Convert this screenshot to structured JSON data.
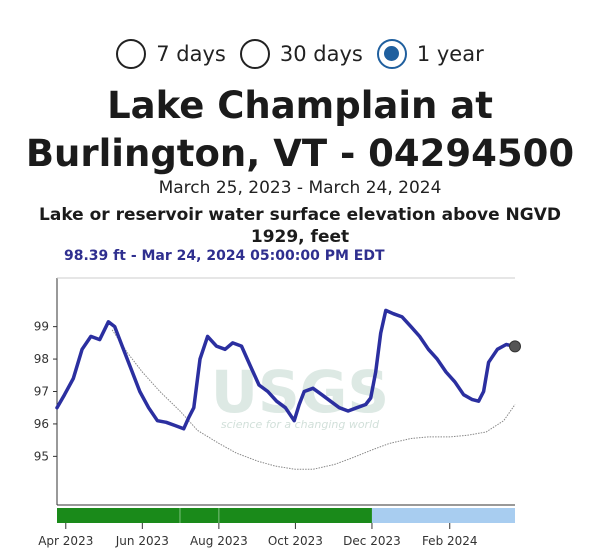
{
  "range_selector": {
    "options": [
      {
        "label": "7 days",
        "selected": false
      },
      {
        "label": "30 days",
        "selected": false
      },
      {
        "label": "1 year",
        "selected": true
      }
    ]
  },
  "header": {
    "title_line1": "Lake Champlain at",
    "title_line2": "Burlington, VT - 04294500",
    "date_range": "March 25, 2023 - March 24, 2024",
    "parameter_line1": "Lake or reservoir water surface elevation above NGVD",
    "parameter_line2": "1929, feet",
    "latest_reading": "98.39 ft - Mar 24, 2024 05:00:00 PM EDT"
  },
  "watermark": {
    "logo_text": "USGS",
    "tagline": "science for a changing world"
  },
  "colors": {
    "series": "#2b2fa0",
    "median": "#888888",
    "approved": "#1a8a1a",
    "provisional": "#a8cdf0"
  },
  "chart_data": {
    "type": "line",
    "x_range": [
      "2023-03-25",
      "2024-03-24"
    ],
    "ylim": [
      93.5,
      100.5
    ],
    "y_ticks": [
      95,
      96,
      97,
      98,
      99
    ],
    "x_ticks": [
      {
        "date": "2023-04-01",
        "label": "Apr 2023"
      },
      {
        "date": "2023-06-01",
        "label": "Jun 2023"
      },
      {
        "date": "2023-08-01",
        "label": "Aug 2023"
      },
      {
        "date": "2023-10-01",
        "label": "Oct 2023"
      },
      {
        "date": "2023-12-01",
        "label": "Dec 2023"
      },
      {
        "date": "2024-02-01",
        "label": "Feb 2024"
      }
    ],
    "grid": false,
    "series": [
      {
        "name": "",
        "points": [
          [
            "2023-03-25",
            96.5
          ],
          [
            "2023-03-31",
            96.9
          ],
          [
            "2023-04-07",
            97.4
          ],
          [
            "2023-04-14",
            98.3
          ],
          [
            "2023-04-21",
            98.7
          ],
          [
            "2023-04-28",
            98.6
          ],
          [
            "2023-05-05",
            99.15
          ],
          [
            "2023-05-10",
            99.0
          ],
          [
            "2023-05-16",
            98.4
          ],
          [
            "2023-05-23",
            97.7
          ],
          [
            "2023-05-30",
            97.0
          ],
          [
            "2023-06-06",
            96.5
          ],
          [
            "2023-06-13",
            96.1
          ],
          [
            "2023-06-20",
            96.05
          ],
          [
            "2023-06-27",
            95.95
          ],
          [
            "2023-07-04",
            95.85
          ],
          [
            "2023-07-08",
            96.2
          ],
          [
            "2023-07-12",
            96.5
          ],
          [
            "2023-07-17",
            98.0
          ],
          [
            "2023-07-23",
            98.7
          ],
          [
            "2023-07-30",
            98.4
          ],
          [
            "2023-08-06",
            98.3
          ],
          [
            "2023-08-12",
            98.5
          ],
          [
            "2023-08-19",
            98.4
          ],
          [
            "2023-08-26",
            97.8
          ],
          [
            "2023-09-02",
            97.2
          ],
          [
            "2023-09-09",
            97.0
          ],
          [
            "2023-09-16",
            96.7
          ],
          [
            "2023-09-23",
            96.5
          ],
          [
            "2023-09-30",
            96.1
          ],
          [
            "2023-10-04",
            96.6
          ],
          [
            "2023-10-08",
            97.0
          ],
          [
            "2023-10-15",
            97.1
          ],
          [
            "2023-10-22",
            96.9
          ],
          [
            "2023-10-29",
            96.7
          ],
          [
            "2023-11-05",
            96.5
          ],
          [
            "2023-11-12",
            96.4
          ],
          [
            "2023-11-19",
            96.5
          ],
          [
            "2023-11-26",
            96.6
          ],
          [
            "2023-11-30",
            96.8
          ],
          [
            "2023-12-04",
            97.6
          ],
          [
            "2023-12-08",
            98.8
          ],
          [
            "2023-12-12",
            99.5
          ],
          [
            "2023-12-18",
            99.4
          ],
          [
            "2023-12-25",
            99.3
          ],
          [
            "2024-01-01",
            99.0
          ],
          [
            "2024-01-08",
            98.7
          ],
          [
            "2024-01-15",
            98.3
          ],
          [
            "2024-01-22",
            98.0
          ],
          [
            "2024-01-29",
            97.6
          ],
          [
            "2024-02-05",
            97.3
          ],
          [
            "2024-02-12",
            96.9
          ],
          [
            "2024-02-19",
            96.75
          ],
          [
            "2024-02-24",
            96.7
          ],
          [
            "2024-02-28",
            97.0
          ],
          [
            "2024-03-03",
            97.9
          ],
          [
            "2024-03-10",
            98.3
          ],
          [
            "2024-03-17",
            98.45
          ],
          [
            "2024-03-24",
            98.39
          ]
        ]
      },
      {
        "name": "",
        "points": [
          [
            "2023-05-08",
            98.9
          ],
          [
            "2023-05-20",
            98.2
          ],
          [
            "2023-06-01",
            97.6
          ],
          [
            "2023-06-15",
            97.0
          ],
          [
            "2023-07-01",
            96.4
          ],
          [
            "2023-07-15",
            95.8
          ],
          [
            "2023-08-01",
            95.4
          ],
          [
            "2023-08-15",
            95.1
          ],
          [
            "2023-09-01",
            94.85
          ],
          [
            "2023-09-15",
            94.7
          ],
          [
            "2023-10-01",
            94.6
          ],
          [
            "2023-10-15",
            94.6
          ],
          [
            "2023-11-01",
            94.75
          ],
          [
            "2023-11-15",
            94.95
          ],
          [
            "2023-12-01",
            95.2
          ],
          [
            "2023-12-15",
            95.4
          ],
          [
            "2024-01-01",
            95.55
          ],
          [
            "2024-01-15",
            95.6
          ],
          [
            "2024-02-01",
            95.6
          ],
          [
            "2024-02-15",
            95.65
          ],
          [
            "2024-03-01",
            95.75
          ],
          [
            "2024-03-15",
            96.1
          ],
          [
            "2024-03-24",
            96.6
          ]
        ]
      }
    ],
    "latest_point": [
      "2024-03-24",
      98.39
    ],
    "status_bar": [
      {
        "start": "2023-03-25",
        "end": "2023-12-01",
        "status": "approved"
      },
      {
        "start": "2023-12-01",
        "end": "2024-03-24",
        "status": "provisional"
      }
    ]
  }
}
